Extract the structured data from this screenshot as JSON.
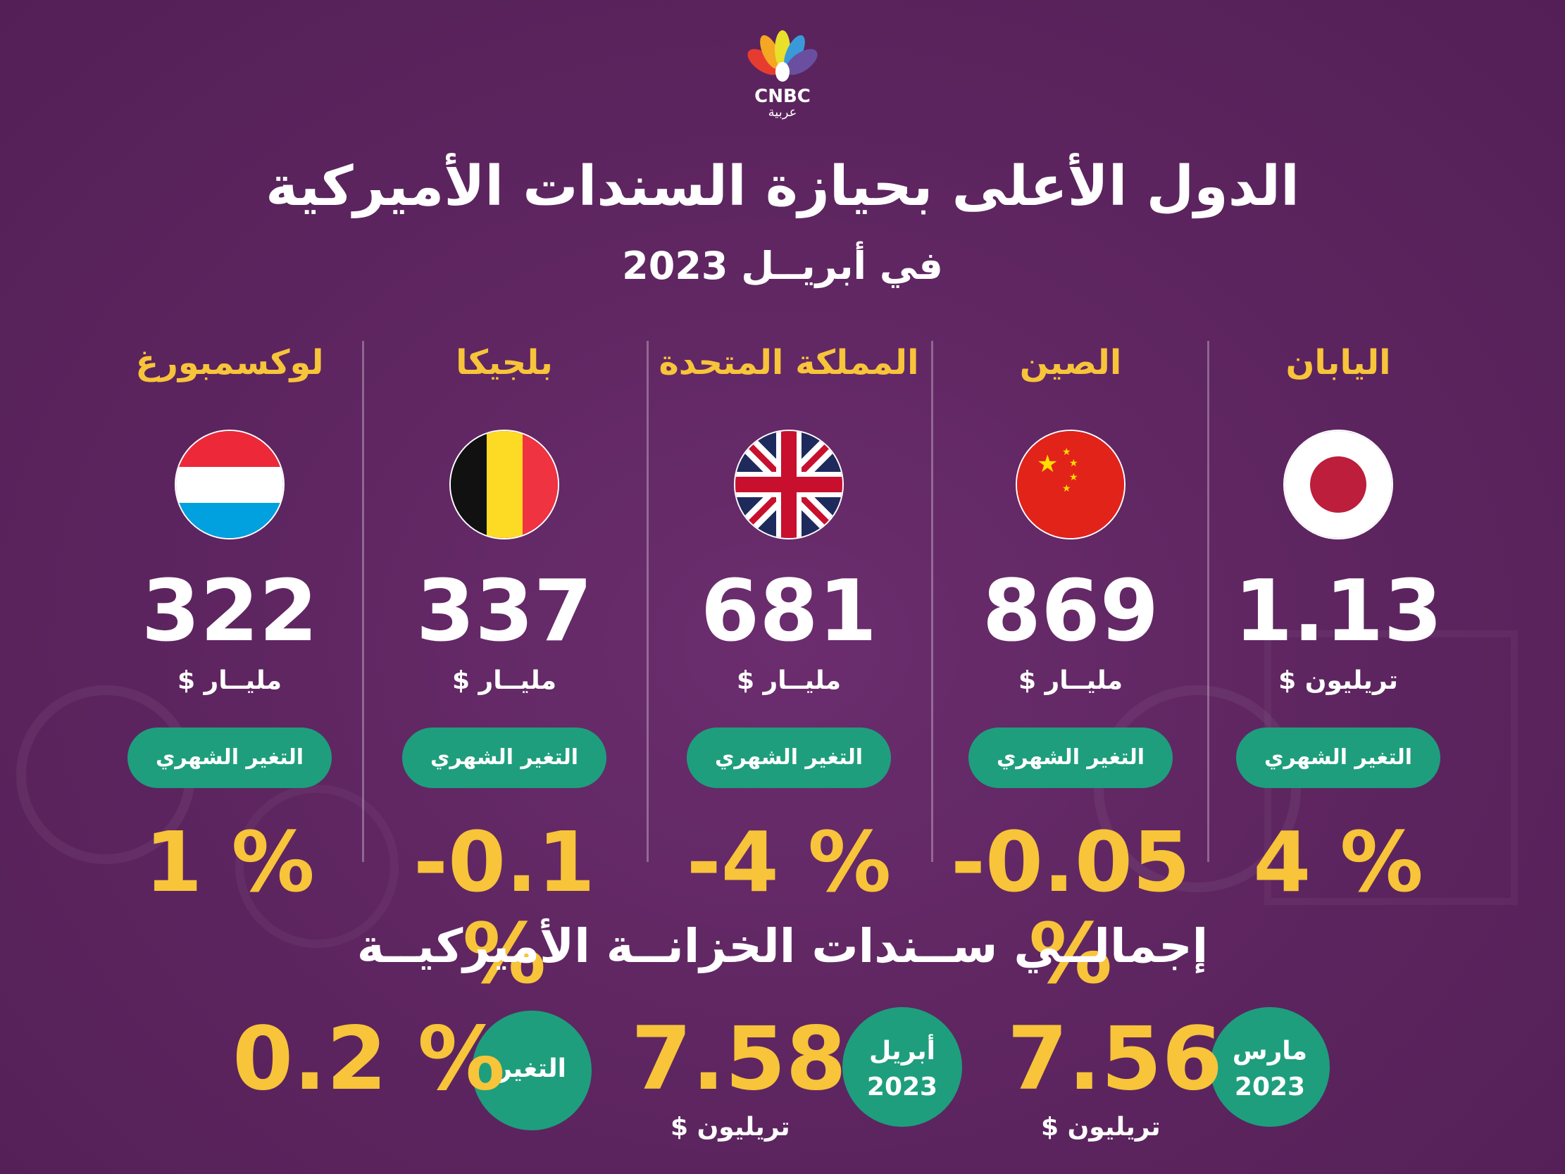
{
  "header": {
    "logo_text": "CNBC",
    "logo_subtext": "عربية",
    "title": "الدول الأعلى بحيازة السندات الأميركية",
    "subtitle": "في أبريــل 2023"
  },
  "countries": [
    {
      "name": "اليابان",
      "flag": "japan-flag",
      "value": "1.13",
      "unit": "تريليون $",
      "pill": "التغير الشهري",
      "change": "4 %"
    },
    {
      "name": "الصين",
      "flag": "china-flag",
      "value": "869",
      "unit": "مليــار $",
      "pill": "التغير الشهري",
      "change": "-0.05 %"
    },
    {
      "name": "المملكة المتحدة",
      "flag": "uk-flag",
      "value": "681",
      "unit": "مليــار $",
      "pill": "التغير الشهري",
      "change": "-4 %"
    },
    {
      "name": "بلجيكا",
      "flag": "belgium-flag",
      "value": "337",
      "unit": "مليــار $",
      "pill": "التغير الشهري",
      "change": "-0.1 %"
    },
    {
      "name": "لوكسمبورغ",
      "flag": "luxembourg-flag",
      "value": "322",
      "unit": "مليــار $",
      "pill": "التغير الشهري",
      "change": "1 %"
    }
  ],
  "total": {
    "title": "إجمالــي ســندات الخزانــة الأميركيــة",
    "march": {
      "month": "مارس",
      "year": "2023",
      "value": "7.56",
      "unit": "تريليون $"
    },
    "april": {
      "month": "أبريل",
      "year": "2023",
      "value": "7.58",
      "unit": "تريليون $"
    },
    "change_label": "التغير",
    "change_value": "0.2 %"
  },
  "colors": {
    "accent": "#f7c43a",
    "pill": "#1e9e7d",
    "background": "#5f2661"
  }
}
